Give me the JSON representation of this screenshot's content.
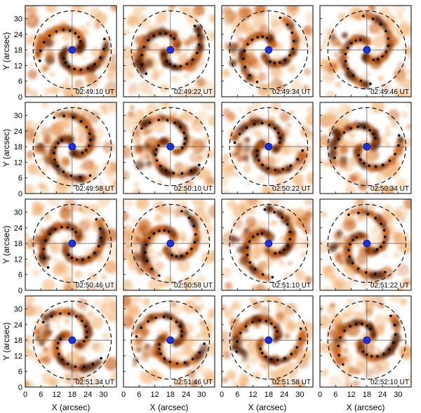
{
  "figure": {
    "xlabel": "X (arcsec)",
    "ylabel": "Y (arcsec)",
    "ticks": [
      "0",
      "6",
      "12",
      "18",
      "24",
      "30"
    ],
    "tick_values": [
      0,
      6,
      12,
      18,
      24,
      30
    ],
    "extent": [
      0,
      35
    ],
    "center": [
      18,
      18
    ],
    "circle_radius": 15,
    "colors": {
      "background": "#ffffff",
      "emission_dark": "#5a1f05",
      "emission_mid": "#c8641e",
      "emission_light": "#f2b57a",
      "dots": "#000000",
      "center_marker": "#1f32d6",
      "crosshair": "#555555",
      "circle": "#000000"
    },
    "panels": [
      {
        "time": "02:49:10 UT"
      },
      {
        "time": "02:49:22 UT"
      },
      {
        "time": "02:49:34 UT"
      },
      {
        "time": "02:49:46 UT"
      },
      {
        "time": "02:49:58 UT"
      },
      {
        "time": "02:50:10 UT"
      },
      {
        "time": "02:50:22 UT"
      },
      {
        "time": "02:50:34 UT"
      },
      {
        "time": "02:50:46 UT"
      },
      {
        "time": "02:50:58 UT"
      },
      {
        "time": "02:51:10 UT"
      },
      {
        "time": "02:51:22 UT"
      },
      {
        "time": "02:51:34 UT"
      },
      {
        "time": "02:51:46 UT"
      },
      {
        "time": "02:51:58 UT"
      },
      {
        "time": "02:52:10 UT"
      }
    ]
  }
}
